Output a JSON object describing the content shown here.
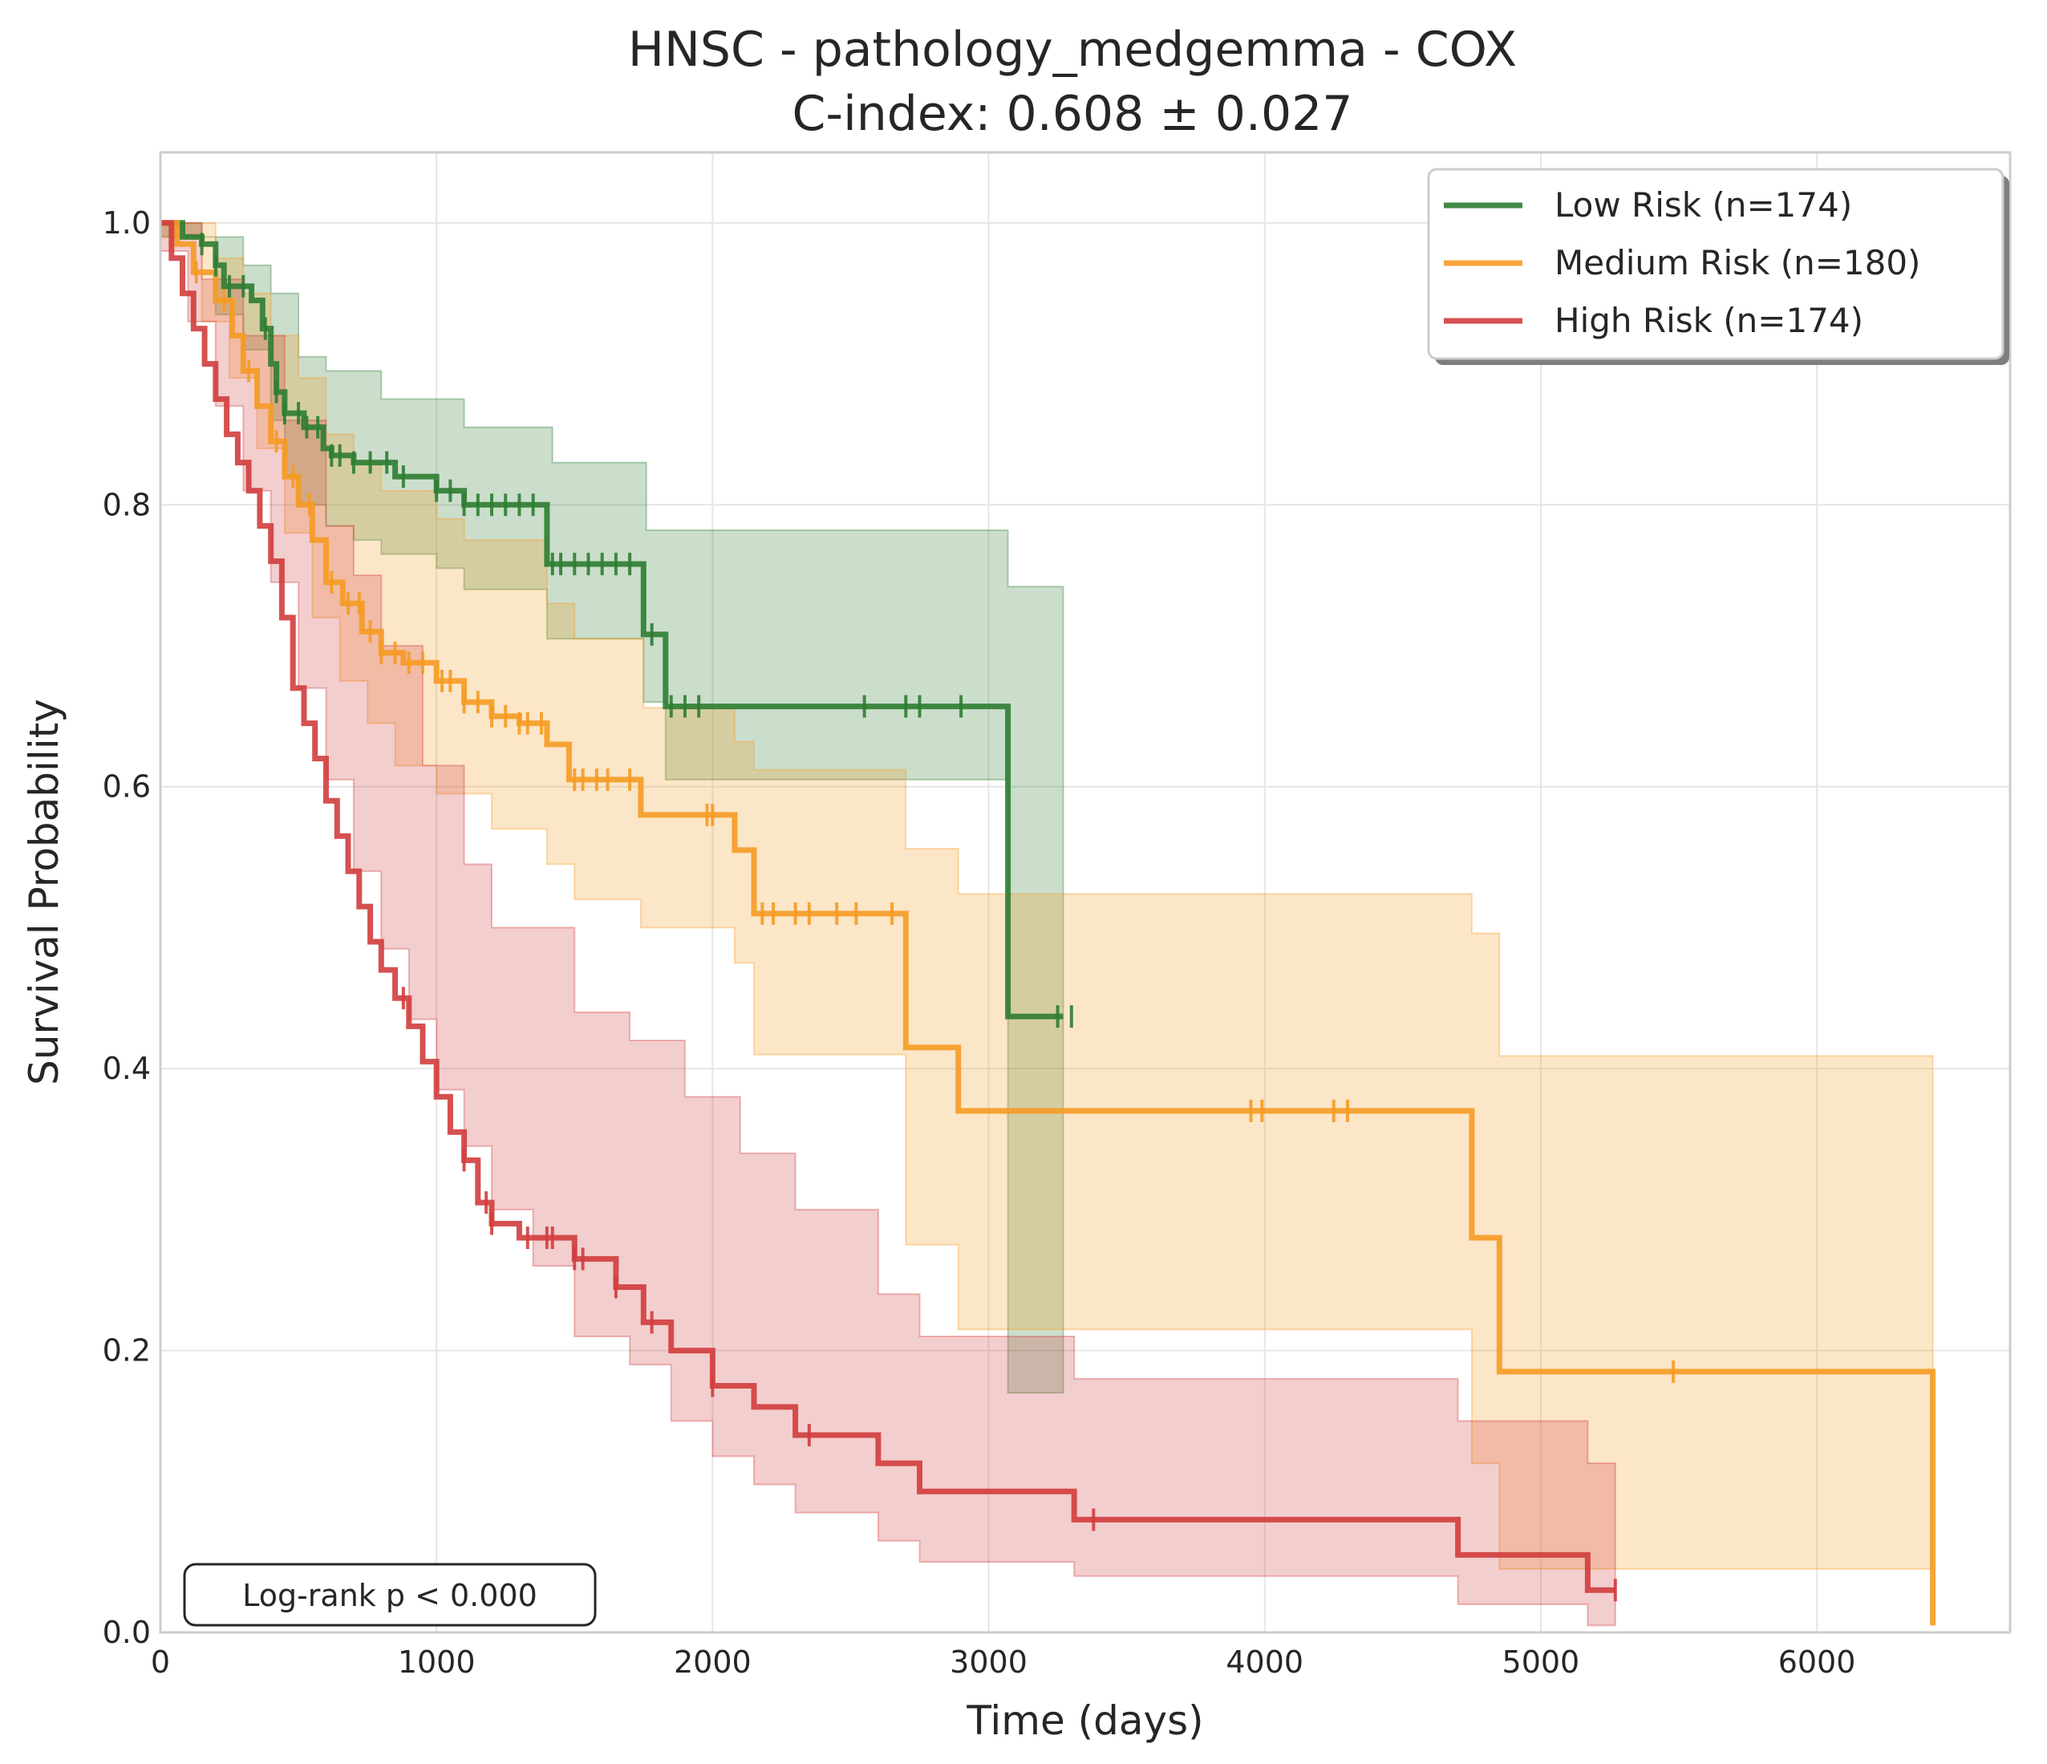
{
  "chart_data": {
    "type": "line",
    "subtype": "kaplan-meier",
    "title": "HNSC - pathology_medgemma - COX",
    "subtitle": "C-index: 0.608 ± 0.027",
    "xlabel": "Time (days)",
    "ylabel": "Survival Probability",
    "xlim": [
      0,
      6700
    ],
    "ylim": [
      0,
      1.05
    ],
    "xticks": [
      0,
      1000,
      2000,
      3000,
      4000,
      5000,
      6000
    ],
    "xtick_labels": [
      "0",
      "1000",
      "2000",
      "3000",
      "4000",
      "5000",
      "6000"
    ],
    "yticks": [
      0.0,
      0.2,
      0.4,
      0.6,
      0.8,
      1.0
    ],
    "ytick_labels": [
      "0.0",
      "0.2",
      "0.4",
      "0.6",
      "0.8",
      "1.0"
    ],
    "grid": true,
    "legend_position": "top-right",
    "annotation": "Log-rank p < 0.000",
    "series": [
      {
        "name": "Low Risk (n=174)",
        "color": "#2e7d32",
        "steps": [
          [
            0,
            1.0
          ],
          [
            80,
            0.99
          ],
          [
            150,
            0.985
          ],
          [
            200,
            0.97
          ],
          [
            230,
            0.955
          ],
          [
            330,
            0.945
          ],
          [
            370,
            0.925
          ],
          [
            400,
            0.9
          ],
          [
            420,
            0.88
          ],
          [
            450,
            0.865
          ],
          [
            520,
            0.855
          ],
          [
            590,
            0.84
          ],
          [
            620,
            0.835
          ],
          [
            700,
            0.83
          ],
          [
            850,
            0.82
          ],
          [
            1000,
            0.81
          ],
          [
            1100,
            0.8
          ],
          [
            1400,
            0.758
          ],
          [
            1750,
            0.708
          ],
          [
            1830,
            0.657
          ],
          [
            3070,
            0.437
          ],
          [
            3270,
            0.437
          ]
        ],
        "ci_upper": [
          [
            0,
            1.0
          ],
          [
            150,
            0.99
          ],
          [
            300,
            0.97
          ],
          [
            400,
            0.95
          ],
          [
            500,
            0.905
          ],
          [
            600,
            0.895
          ],
          [
            800,
            0.875
          ],
          [
            1100,
            0.855
          ],
          [
            1420,
            0.83
          ],
          [
            1760,
            0.782
          ],
          [
            3070,
            0.742
          ],
          [
            3270,
            0.742
          ]
        ],
        "ci_lower": [
          [
            0,
            0.99
          ],
          [
            200,
            0.935
          ],
          [
            300,
            0.91
          ],
          [
            400,
            0.86
          ],
          [
            450,
            0.82
          ],
          [
            500,
            0.8
          ],
          [
            600,
            0.785
          ],
          [
            700,
            0.775
          ],
          [
            800,
            0.765
          ],
          [
            1000,
            0.755
          ],
          [
            1100,
            0.74
          ],
          [
            1400,
            0.705
          ],
          [
            1750,
            0.66
          ],
          [
            1830,
            0.605
          ],
          [
            3070,
            0.17
          ],
          [
            3270,
            0.17
          ]
        ],
        "censor_times": [
          150,
          200,
          250,
          300,
          380,
          420,
          450,
          500,
          530,
          570,
          620,
          650,
          700,
          760,
          820,
          880,
          1000,
          1050,
          1100,
          1150,
          1200,
          1250,
          1300,
          1350,
          1420,
          1450,
          1500,
          1550,
          1600,
          1650,
          1700,
          1780,
          1850,
          1900,
          1950,
          2550,
          2700,
          2750,
          2900,
          3250,
          3300
        ]
      },
      {
        "name": "Medium Risk (n=180)",
        "color": "#f59b23",
        "steps": [
          [
            0,
            1.0
          ],
          [
            60,
            0.985
          ],
          [
            120,
            0.965
          ],
          [
            200,
            0.945
          ],
          [
            260,
            0.92
          ],
          [
            300,
            0.895
          ],
          [
            350,
            0.87
          ],
          [
            400,
            0.845
          ],
          [
            450,
            0.82
          ],
          [
            500,
            0.8
          ],
          [
            550,
            0.775
          ],
          [
            600,
            0.745
          ],
          [
            660,
            0.73
          ],
          [
            730,
            0.71
          ],
          [
            800,
            0.695
          ],
          [
            880,
            0.688
          ],
          [
            1000,
            0.675
          ],
          [
            1100,
            0.66
          ],
          [
            1200,
            0.65
          ],
          [
            1300,
            0.645
          ],
          [
            1400,
            0.63
          ],
          [
            1480,
            0.605
          ],
          [
            1740,
            0.58
          ],
          [
            2080,
            0.555
          ],
          [
            2150,
            0.51
          ],
          [
            2700,
            0.415
          ],
          [
            2890,
            0.37
          ],
          [
            4750,
            0.28
          ],
          [
            4850,
            0.185
          ],
          [
            6420,
            0.185
          ],
          [
            6420,
            0.005
          ]
        ],
        "ci_upper": [
          [
            0,
            1.0
          ],
          [
            200,
            0.975
          ],
          [
            300,
            0.95
          ],
          [
            400,
            0.92
          ],
          [
            500,
            0.89
          ],
          [
            600,
            0.85
          ],
          [
            700,
            0.83
          ],
          [
            800,
            0.81
          ],
          [
            1000,
            0.79
          ],
          [
            1100,
            0.775
          ],
          [
            1400,
            0.73
          ],
          [
            1500,
            0.705
          ],
          [
            1750,
            0.656
          ],
          [
            2080,
            0.632
          ],
          [
            2150,
            0.612
          ],
          [
            2700,
            0.556
          ],
          [
            2890,
            0.524
          ],
          [
            4750,
            0.496
          ],
          [
            4850,
            0.409
          ],
          [
            6420,
            0.409
          ]
        ],
        "ci_lower": [
          [
            0,
            0.99
          ],
          [
            150,
            0.93
          ],
          [
            250,
            0.89
          ],
          [
            350,
            0.84
          ],
          [
            450,
            0.78
          ],
          [
            550,
            0.72
          ],
          [
            650,
            0.675
          ],
          [
            750,
            0.645
          ],
          [
            850,
            0.615
          ],
          [
            1000,
            0.595
          ],
          [
            1200,
            0.57
          ],
          [
            1400,
            0.545
          ],
          [
            1500,
            0.52
          ],
          [
            1740,
            0.5
          ],
          [
            2080,
            0.475
          ],
          [
            2150,
            0.41
          ],
          [
            2700,
            0.275
          ],
          [
            2890,
            0.215
          ],
          [
            4750,
            0.12
          ],
          [
            4850,
            0.045
          ],
          [
            6420,
            0.045
          ]
        ],
        "censor_times": [
          130,
          230,
          320,
          420,
          480,
          540,
          620,
          680,
          720,
          760,
          800,
          850,
          900,
          950,
          1020,
          1050,
          1100,
          1150,
          1200,
          1250,
          1300,
          1330,
          1380,
          1500,
          1530,
          1580,
          1620,
          1700,
          1980,
          2000,
          2180,
          2220,
          2300,
          2350,
          2450,
          2520,
          2650,
          3950,
          3990,
          4250,
          4300,
          5480
        ]
      },
      {
        "name": "High Risk (n=174)",
        "color": "#d13d3d",
        "steps": [
          [
            0,
            1.0
          ],
          [
            40,
            0.975
          ],
          [
            80,
            0.95
          ],
          [
            120,
            0.925
          ],
          [
            160,
            0.9
          ],
          [
            200,
            0.875
          ],
          [
            240,
            0.85
          ],
          [
            280,
            0.83
          ],
          [
            320,
            0.81
          ],
          [
            360,
            0.785
          ],
          [
            400,
            0.76
          ],
          [
            440,
            0.72
          ],
          [
            480,
            0.67
          ],
          [
            520,
            0.645
          ],
          [
            560,
            0.62
          ],
          [
            600,
            0.59
          ],
          [
            640,
            0.565
          ],
          [
            680,
            0.54
          ],
          [
            720,
            0.515
          ],
          [
            760,
            0.49
          ],
          [
            800,
            0.47
          ],
          [
            850,
            0.45
          ],
          [
            900,
            0.43
          ],
          [
            950,
            0.405
          ],
          [
            1000,
            0.38
          ],
          [
            1050,
            0.355
          ],
          [
            1100,
            0.335
          ],
          [
            1150,
            0.305
          ],
          [
            1200,
            0.29
          ],
          [
            1300,
            0.28
          ],
          [
            1500,
            0.265
          ],
          [
            1650,
            0.245
          ],
          [
            1750,
            0.22
          ],
          [
            1850,
            0.2
          ],
          [
            2000,
            0.175
          ],
          [
            2150,
            0.16
          ],
          [
            2300,
            0.14
          ],
          [
            2600,
            0.12
          ],
          [
            2750,
            0.1
          ],
          [
            3310,
            0.08
          ],
          [
            4700,
            0.055
          ],
          [
            5170,
            0.03
          ],
          [
            5270,
            0.03
          ]
        ],
        "ci_upper": [
          [
            0,
            1.0
          ],
          [
            150,
            0.96
          ],
          [
            300,
            0.92
          ],
          [
            450,
            0.86
          ],
          [
            600,
            0.785
          ],
          [
            700,
            0.75
          ],
          [
            800,
            0.7
          ],
          [
            950,
            0.615
          ],
          [
            1100,
            0.545
          ],
          [
            1200,
            0.5
          ],
          [
            1500,
            0.44
          ],
          [
            1700,
            0.42
          ],
          [
            1900,
            0.38
          ],
          [
            2100,
            0.34
          ],
          [
            2300,
            0.3
          ],
          [
            2600,
            0.24
          ],
          [
            2750,
            0.21
          ],
          [
            3310,
            0.18
          ],
          [
            4700,
            0.15
          ],
          [
            5170,
            0.12
          ],
          [
            5270,
            0.12
          ]
        ],
        "ci_lower": [
          [
            0,
            0.98
          ],
          [
            100,
            0.93
          ],
          [
            200,
            0.87
          ],
          [
            300,
            0.81
          ],
          [
            400,
            0.745
          ],
          [
            500,
            0.67
          ],
          [
            600,
            0.605
          ],
          [
            700,
            0.54
          ],
          [
            800,
            0.485
          ],
          [
            900,
            0.435
          ],
          [
            1000,
            0.385
          ],
          [
            1100,
            0.345
          ],
          [
            1200,
            0.3
          ],
          [
            1350,
            0.26
          ],
          [
            1500,
            0.21
          ],
          [
            1700,
            0.19
          ],
          [
            1850,
            0.15
          ],
          [
            2000,
            0.125
          ],
          [
            2150,
            0.105
          ],
          [
            2300,
            0.085
          ],
          [
            2600,
            0.065
          ],
          [
            2750,
            0.05
          ],
          [
            3310,
            0.04
          ],
          [
            4700,
            0.02
          ],
          [
            5170,
            0.005
          ],
          [
            5270,
            0.005
          ]
        ],
        "censor_times": [
          880,
          1100,
          1180,
          1200,
          1330,
          1400,
          1420,
          1500,
          1530,
          1650,
          1780,
          2000,
          2350,
          3380,
          5270
        ]
      }
    ]
  }
}
